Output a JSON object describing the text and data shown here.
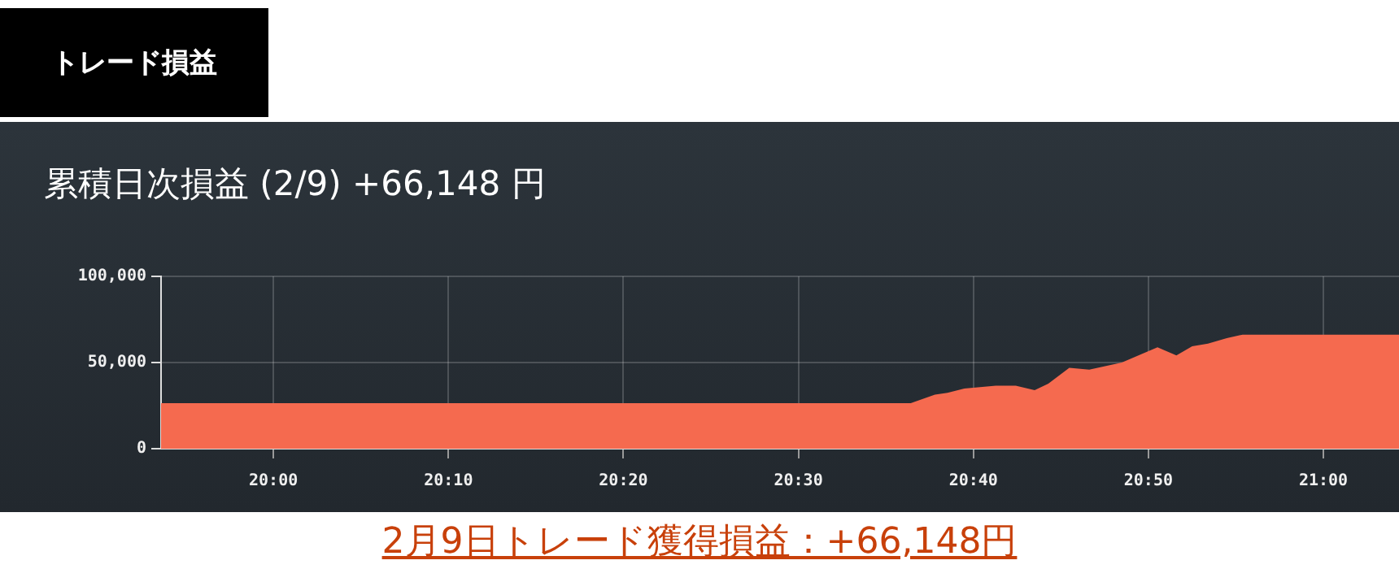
{
  "chart_data": {
    "type": "area",
    "title": "トレード損益",
    "subtitle": "累積日次損益 (2/9) +66,148 円",
    "annotations": [
      "2月9日トレード獲得損益：+66,148円"
    ],
    "x": [
      19.893,
      20.607,
      20.63,
      20.642,
      20.658,
      20.688,
      20.707,
      20.725,
      20.738,
      20.758,
      20.777,
      20.808,
      20.827,
      20.842,
      20.86,
      20.875,
      20.89,
      20.908,
      20.923,
      21.072
    ],
    "series": [
      {
        "color": "#f56a4f",
        "values": [
          26400,
          26400,
          31400,
          32400,
          34900,
          36500,
          36500,
          34000,
          37700,
          46900,
          45900,
          50000,
          55000,
          58800,
          54100,
          59400,
          61000,
          64200,
          66148,
          66148
        ]
      }
    ],
    "xlim": [
      19.893,
      21.072
    ],
    "xticks": [
      {
        "value": 20,
        "label": "20:00"
      },
      {
        "value": 20.1667,
        "label": "20:10"
      },
      {
        "value": 20.3333,
        "label": "20:20"
      },
      {
        "value": 20.5,
        "label": "20:30"
      },
      {
        "value": 20.6667,
        "label": "20:40"
      },
      {
        "value": 20.8333,
        "label": "20:50"
      },
      {
        "value": 21,
        "label": "21:00"
      }
    ],
    "ylim": [
      0,
      100000
    ],
    "yticks": [
      0,
      {
        "value": 50000,
        "label": "50,000"
      },
      {
        "value": 100000,
        "label": "100,000"
      }
    ],
    "grid": true,
    "legend": false
  }
}
